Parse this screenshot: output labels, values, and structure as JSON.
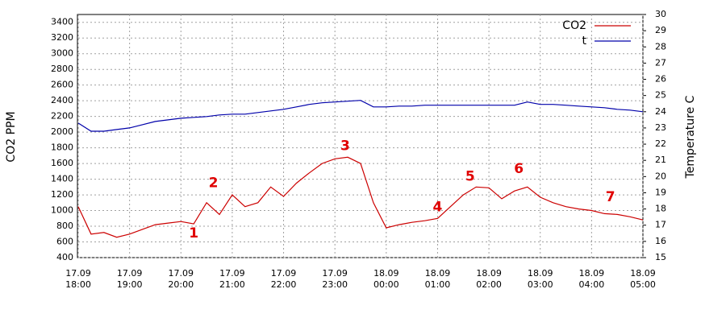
{
  "chart_data": {
    "type": "line",
    "y_label": "CO2 PPM",
    "y2_label": "Temperature C",
    "x": [
      "17.09 18:00",
      "17.09 18:15",
      "17.09 18:30",
      "17.09 18:45",
      "17.09 19:00",
      "17.09 19:15",
      "17.09 19:30",
      "17.09 19:45",
      "17.09 20:00",
      "17.09 20:15",
      "17.09 20:30",
      "17.09 20:45",
      "17.09 21:00",
      "17.09 21:15",
      "17.09 21:30",
      "17.09 21:45",
      "17.09 22:00",
      "17.09 22:15",
      "17.09 22:30",
      "17.09 22:45",
      "17.09 23:00",
      "17.09 23:15",
      "17.09 23:30",
      "17.09 23:45",
      "18.09 00:00",
      "18.09 00:15",
      "18.09 00:30",
      "18.09 00:45",
      "18.09 01:00",
      "18.09 01:15",
      "18.09 01:30",
      "18.09 01:45",
      "18.09 02:00",
      "18.09 02:15",
      "18.09 02:30",
      "18.09 02:45",
      "18.09 03:00",
      "18.09 03:15",
      "18.09 03:30",
      "18.09 03:45",
      "18.09 04:00",
      "18.09 04:15",
      "18.09 04:30",
      "18.09 04:45",
      "18.09 05:00"
    ],
    "series": [
      {
        "name": "CO2",
        "color": "#cc0000",
        "axis": "y",
        "values": [
          1050,
          700,
          720,
          660,
          700,
          760,
          820,
          840,
          860,
          830,
          1100,
          950,
          1200,
          1050,
          1100,
          1300,
          1180,
          1350,
          1480,
          1600,
          1660,
          1680,
          1600,
          1100,
          780,
          820,
          850,
          870,
          900,
          1050,
          1200,
          1300,
          1290,
          1150,
          1250,
          1300,
          1170,
          1100,
          1050,
          1020,
          1000,
          960,
          950,
          920,
          880
        ]
      },
      {
        "name": "t",
        "color": "#0000aa",
        "axis": "y2",
        "values": [
          23.3,
          22.8,
          22.8,
          22.9,
          23.0,
          23.2,
          23.4,
          23.5,
          23.6,
          23.65,
          23.7,
          23.8,
          23.85,
          23.85,
          23.95,
          24.05,
          24.15,
          24.3,
          24.45,
          24.55,
          24.6,
          24.65,
          24.7,
          24.3,
          24.3,
          24.35,
          24.35,
          24.4,
          24.4,
          24.4,
          24.4,
          24.4,
          24.4,
          24.4,
          24.4,
          24.6,
          24.45,
          24.45,
          24.4,
          24.35,
          24.3,
          24.25,
          24.15,
          24.1,
          24.0
        ]
      }
    ],
    "xlim": [
      "17.09 18:00",
      "18.09 05:00"
    ],
    "xticks": [
      "17.09 18:00",
      "17.09 19:00",
      "17.09 20:00",
      "17.09 21:00",
      "17.09 22:00",
      "17.09 23:00",
      "18.09 00:00",
      "18.09 01:00",
      "18.09 02:00",
      "18.09 03:00",
      "18.09 04:00",
      "18.09 05:00"
    ],
    "ylim": [
      400,
      3500
    ],
    "yticks": [
      400,
      600,
      800,
      1000,
      1200,
      1400,
      1600,
      1800,
      2000,
      2200,
      2400,
      2600,
      2800,
      3000,
      3200,
      3400
    ],
    "y2lim": [
      15,
      30
    ],
    "y2ticks": [
      15,
      16,
      17,
      18,
      19,
      20,
      21,
      22,
      23,
      24,
      25,
      26,
      27,
      28,
      29,
      30
    ],
    "grid": true,
    "legend": "top-right",
    "annotations": [
      {
        "text": "1",
        "x": "17.09 20:15",
        "y": 710
      },
      {
        "text": "2",
        "x": "17.09 20:38",
        "y": 1350
      },
      {
        "text": "3",
        "x": "17.09 23:12",
        "y": 1820
      },
      {
        "text": "4",
        "x": "18.09 01:00",
        "y": 1040
      },
      {
        "text": "5",
        "x": "18.09 01:38",
        "y": 1430
      },
      {
        "text": "6",
        "x": "18.09 02:35",
        "y": 1530
      },
      {
        "text": "7",
        "x": "18.09 04:22",
        "y": 1170
      }
    ]
  }
}
